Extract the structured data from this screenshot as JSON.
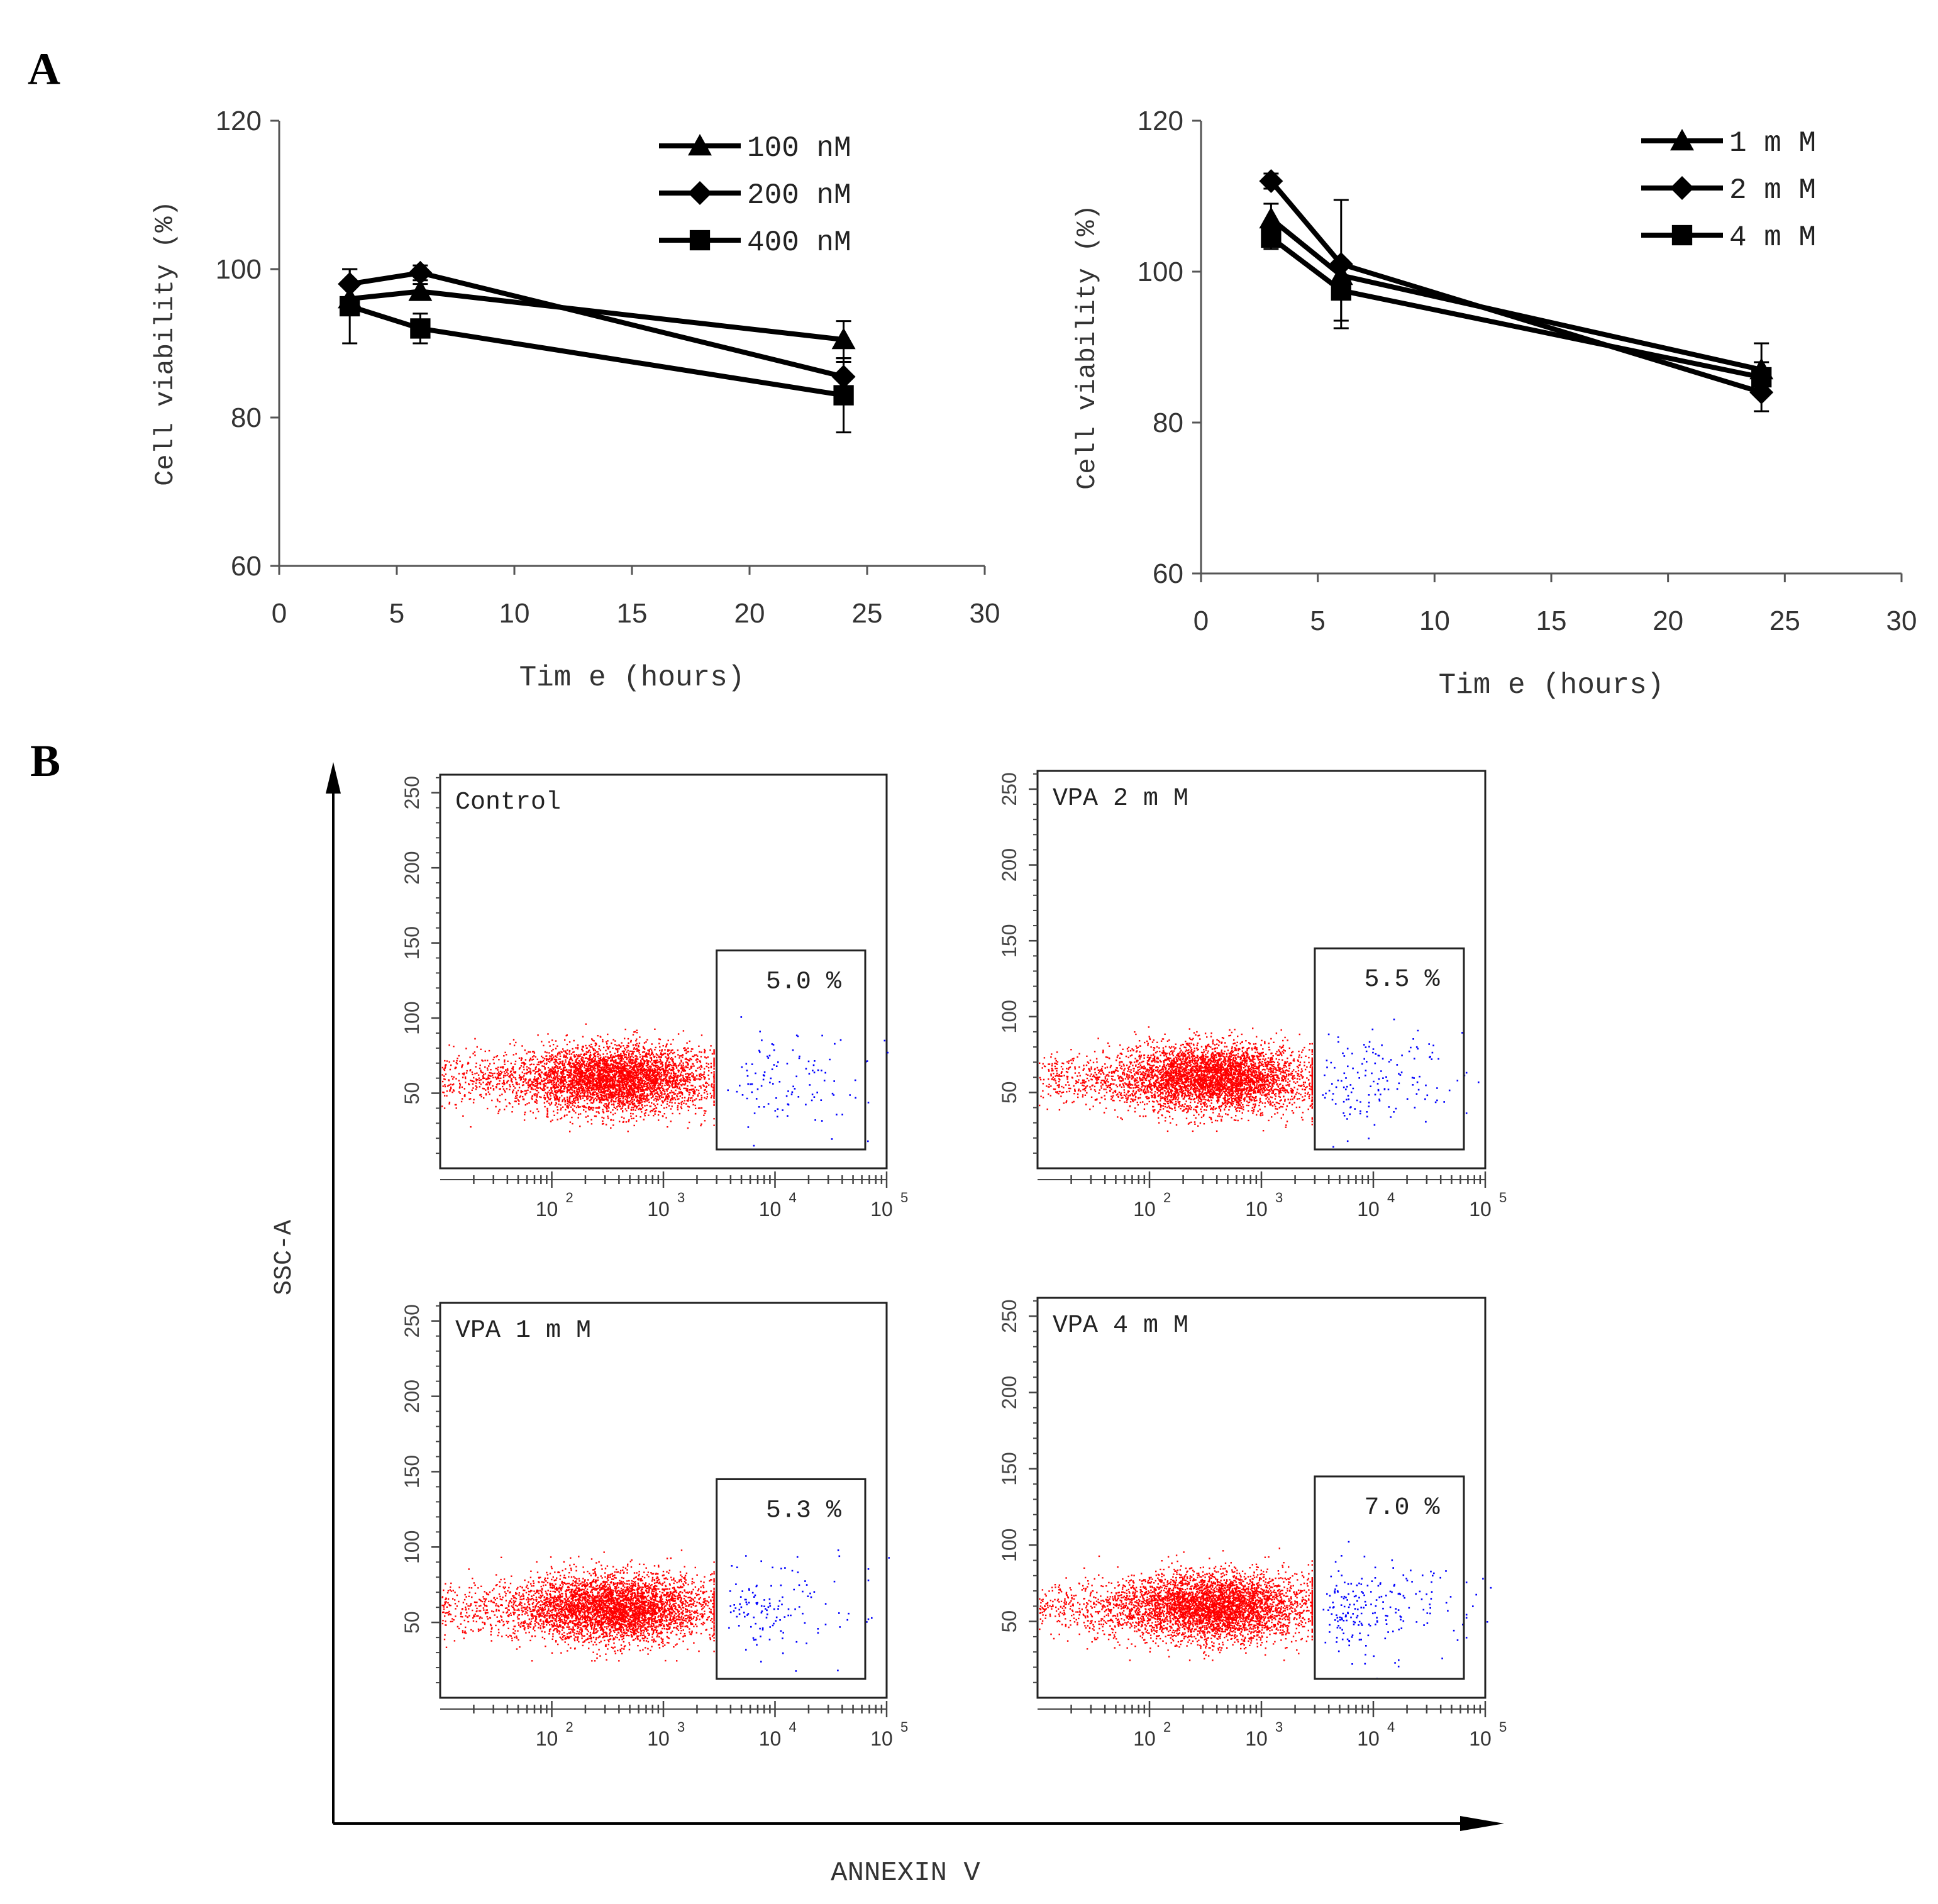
{
  "panel_labels": {
    "a": "A",
    "b": "B"
  },
  "chart_data": [
    {
      "id": "viability-left",
      "type": "line",
      "title": "",
      "xlabel": "Tim e (hours)",
      "ylabel": "Cell viability (%)",
      "xlim": [
        0,
        30
      ],
      "ylim": [
        60,
        120
      ],
      "xticks": [
        "0",
        "5",
        "10",
        "15",
        "20",
        "25",
        "30"
      ],
      "yticks": [
        "60",
        "80",
        "100",
        "120"
      ],
      "legend": "top-center",
      "series": [
        {
          "name": "100 nM",
          "marker": "triangle",
          "x": [
            3,
            6,
            24
          ],
          "y": [
            96,
            97,
            90.5
          ],
          "err": [
            2,
            1,
            2.5
          ]
        },
        {
          "name": "200 nM",
          "marker": "diamond",
          "x": [
            3,
            6,
            24
          ],
          "y": [
            98,
            99.5,
            85.5
          ],
          "err": [
            2,
            1,
            2
          ]
        },
        {
          "name": "400 nM",
          "marker": "square",
          "x": [
            3,
            6,
            24
          ],
          "y": [
            95,
            92,
            83
          ],
          "err": [
            5,
            2,
            5
          ]
        }
      ]
    },
    {
      "id": "viability-right",
      "type": "line",
      "title": "",
      "xlabel": "Tim e (hours)",
      "ylabel": "Cell viability (%)",
      "xlim": [
        0,
        30
      ],
      "ylim": [
        60,
        120
      ],
      "xticks": [
        "0",
        "5",
        "10",
        "15",
        "20",
        "25",
        "30"
      ],
      "yticks": [
        "60",
        "80",
        "100",
        "120"
      ],
      "legend": "top-right",
      "series": [
        {
          "name": "1 m M",
          "marker": "triangle",
          "x": [
            3,
            6,
            24
          ],
          "y": [
            107,
            99.5,
            87
          ],
          "err": [
            2,
            1,
            3.5
          ]
        },
        {
          "name": "2 m M",
          "marker": "diamond",
          "x": [
            3,
            6,
            24
          ],
          "y": [
            112,
            101,
            84
          ],
          "err": [
            1,
            8.5,
            2.5
          ]
        },
        {
          "name": "4 m M",
          "marker": "square",
          "x": [
            3,
            6,
            24
          ],
          "y": [
            104.5,
            97.5,
            86
          ],
          "err": [
            1.5,
            4,
            2
          ]
        }
      ]
    },
    {
      "id": "flow-cytometry",
      "type": "scatter",
      "xlabel": "ANNEXIN V",
      "ylabel": "SSC-A",
      "xscale": "log",
      "xlim": [
        10,
        100000
      ],
      "ylim": [
        0,
        262
      ],
      "yticks": [
        "50",
        "100",
        "150",
        "200",
        "250"
      ],
      "xtick_base": "10",
      "xtick_exponents": [
        "2",
        "3",
        "4",
        "5"
      ],
      "gate_x": [
        3000,
        100000
      ],
      "gate_y": [
        0,
        145
      ],
      "panels": [
        {
          "label": "Control",
          "apoptotic_percent": "5.0 %",
          "blue_density": 1.0
        },
        {
          "label": "VPA  2 m M",
          "apoptotic_percent": "5.5 %",
          "blue_density": 1.4
        },
        {
          "label": "VPA  1 m M",
          "apoptotic_percent": "5.3 %",
          "blue_density": 1.2
        },
        {
          "label": "VPA  4 m M",
          "apoptotic_percent": "7.0 %",
          "blue_density": 2.0
        }
      ]
    }
  ],
  "colors": {
    "ink": "#000000",
    "live_cells": "#ff0000",
    "apoptotic_cells": "#0000ff",
    "axis_gray": "#555555"
  }
}
